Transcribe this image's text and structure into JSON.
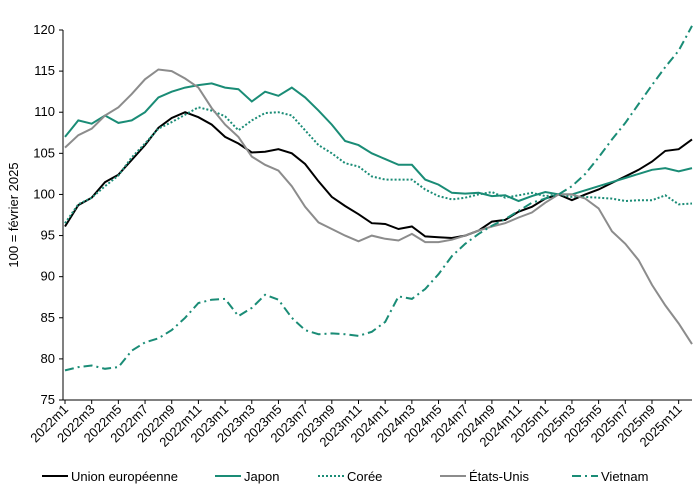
{
  "chart_data": {
    "type": "line",
    "y_label": "100 = février 2025",
    "categories": [
      "2022m1",
      null,
      "2022m3",
      null,
      "2022m5",
      null,
      "2022m7",
      null,
      "2022m9",
      null,
      "2022m11",
      null,
      "2023m1",
      null,
      "2023m3",
      null,
      "2023m5",
      null,
      "2023m7",
      null,
      "2023m9",
      null,
      "2023m11",
      null,
      "2024m1",
      null,
      "2024m3",
      null,
      "2024m5",
      null,
      "2024m7",
      null,
      "2024m9",
      null,
      "2024m11",
      null,
      "2025m1",
      null,
      "2025m3",
      null,
      "2025m5",
      null,
      "2025m7",
      null,
      "2025m9",
      null,
      "2025m11",
      null
    ],
    "ylim": [
      75,
      120
    ],
    "yticks": [
      75,
      80,
      85,
      90,
      95,
      100,
      105,
      110,
      115,
      120
    ],
    "series": [
      {
        "name": "Union européenne",
        "color": "#000000",
        "style": "solid",
        "values": [
          96.1,
          98.7,
          99.6,
          101.5,
          102.4,
          104.2,
          106,
          108.1,
          109.3,
          110,
          109.4,
          108.5,
          107,
          106.2,
          105.1,
          105.2,
          105.5,
          105,
          103.7,
          101.6,
          99.7,
          98.6,
          97.6,
          96.5,
          96.4,
          95.8,
          96.1,
          94.9,
          94.8,
          94.7,
          95,
          95.6,
          96.7,
          96.9,
          97.9,
          98.5,
          99.5,
          100,
          99.3,
          100,
          100.6,
          101.4,
          102.2,
          103,
          104,
          105.3,
          105.5,
          106.7
        ]
      },
      {
        "name": "Japon",
        "color": "#1a8c76",
        "style": "solid",
        "values": [
          107,
          109,
          108.6,
          109.6,
          108.7,
          109,
          110,
          111.8,
          112.5,
          113,
          113.3,
          113.5,
          113,
          112.8,
          111.3,
          112.5,
          112,
          113,
          111.8,
          110.2,
          108.5,
          106.5,
          106,
          105,
          104.3,
          103.6,
          103.6,
          101.8,
          101.2,
          100.2,
          100.1,
          100.2,
          99.8,
          99.9,
          99.2,
          99.8,
          100.3,
          100,
          100,
          100.5,
          101,
          101.5,
          102,
          102.5,
          103,
          103.2,
          102.8,
          103.2
        ]
      },
      {
        "name": "Corée",
        "color": "#1a8c76",
        "style": "dotted",
        "values": [
          96.5,
          98.8,
          99.6,
          101,
          102.3,
          104.5,
          106.2,
          108,
          108.8,
          109.7,
          110.6,
          110.2,
          109.5,
          107.8,
          109,
          109.9,
          110,
          109.6,
          107.8,
          106,
          105,
          103.8,
          103.4,
          102.2,
          101.8,
          101.8,
          101.8,
          100.6,
          99.8,
          99.4,
          99.6,
          100,
          100.3,
          99.6,
          99.9,
          100.2,
          99.8,
          100,
          99.7,
          99.7,
          99.6,
          99.5,
          99.2,
          99.3,
          99.3,
          99.9,
          98.8,
          98.9
        ]
      },
      {
        "name": "États-Unis",
        "color": "#8c8c8c",
        "style": "solid",
        "values": [
          105.7,
          107.2,
          108,
          109.6,
          110.6,
          112.2,
          114,
          115.2,
          115,
          114.1,
          113,
          110.5,
          108.5,
          107,
          104.6,
          103.6,
          102.9,
          101,
          98.5,
          96.6,
          95.8,
          95,
          94.3,
          95,
          94.6,
          94.4,
          95.2,
          94.2,
          94.2,
          94.5,
          95,
          95.6,
          96.1,
          96.5,
          97.2,
          97.8,
          99,
          100,
          100,
          99.5,
          98.3,
          95.5,
          94,
          92,
          89,
          86.5,
          84.3,
          81.8
        ]
      },
      {
        "name": "Vietnam",
        "color": "#1a8c76",
        "style": "dashdot",
        "values": [
          78.6,
          79,
          79.2,
          78.8,
          79,
          81,
          82,
          82.5,
          83.5,
          85,
          86.8,
          87.2,
          87.3,
          85.2,
          86.2,
          87.8,
          87.2,
          85,
          83.5,
          83,
          83.1,
          83,
          82.8,
          83.3,
          84.5,
          87.6,
          87.3,
          88.5,
          90.3,
          92.5,
          94,
          95.2,
          96.2,
          97,
          98,
          99,
          99.5,
          100,
          101,
          102.5,
          104.5,
          106.7,
          108.7,
          111,
          113.3,
          115.5,
          117.5,
          120.5
        ]
      }
    ]
  }
}
